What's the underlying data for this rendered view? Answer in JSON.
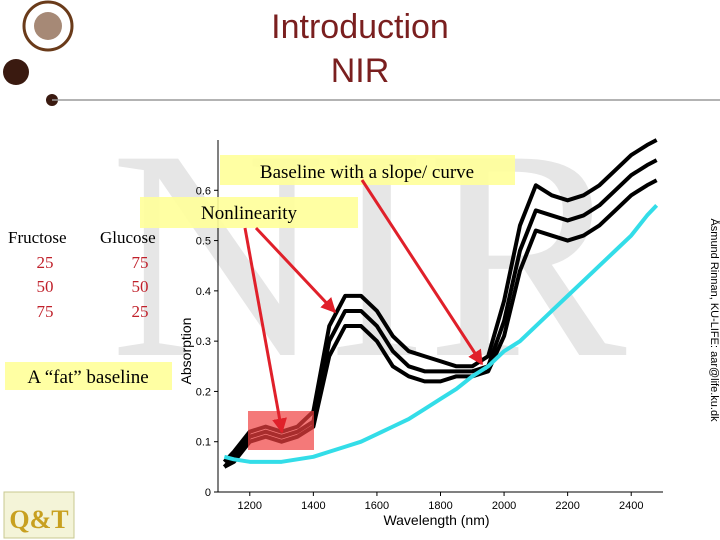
{
  "slide": {
    "title_lines": [
      "Introduction",
      "NIR"
    ],
    "watermark": "NIR",
    "credit": "Åsmund Rinnan, KU-LIFE: aar@life.ku.dk",
    "table": {
      "header": [
        "Fructose",
        "Glucose"
      ],
      "rows": [
        [
          25,
          75
        ],
        [
          50,
          50
        ],
        [
          75,
          25
        ]
      ]
    },
    "callouts": [
      "Baseline with a slope/ curve",
      "Nonlinearity",
      "A “fat” baseline"
    ],
    "logo": "Q&T"
  },
  "chart_data": {
    "type": "line",
    "xlabel": "Wavelength (nm)",
    "ylabel": "Absorption",
    "xlim": [
      1100,
      2500
    ],
    "xticks": [
      1200,
      1400,
      1600,
      1800,
      2000,
      2200,
      2400
    ],
    "ylim": [
      0,
      0.7
    ],
    "yticks": [
      0,
      0.1,
      0.2,
      0.3,
      0.4,
      0.5,
      0.6
    ],
    "x": [
      1120,
      1150,
      1200,
      1250,
      1300,
      1350,
      1400,
      1450,
      1500,
      1550,
      1600,
      1650,
      1700,
      1750,
      1800,
      1850,
      1900,
      1950,
      2000,
      2050,
      2100,
      2150,
      2200,
      2250,
      2300,
      2350,
      2400,
      2450,
      2480
    ],
    "series": [
      {
        "color": "#000000",
        "values": [
          0.06,
          0.08,
          0.12,
          0.13,
          0.12,
          0.13,
          0.16,
          0.33,
          0.39,
          0.39,
          0.36,
          0.31,
          0.28,
          0.27,
          0.26,
          0.25,
          0.25,
          0.27,
          0.38,
          0.53,
          0.61,
          0.59,
          0.58,
          0.59,
          0.61,
          0.64,
          0.67,
          0.69,
          0.7
        ]
      },
      {
        "color": "#000000",
        "values": [
          0.05,
          0.07,
          0.11,
          0.12,
          0.11,
          0.12,
          0.14,
          0.3,
          0.36,
          0.36,
          0.33,
          0.28,
          0.25,
          0.24,
          0.24,
          0.24,
          0.24,
          0.25,
          0.34,
          0.48,
          0.56,
          0.55,
          0.54,
          0.55,
          0.57,
          0.6,
          0.63,
          0.65,
          0.66
        ]
      },
      {
        "color": "#000000",
        "values": [
          0.05,
          0.06,
          0.1,
          0.11,
          0.1,
          0.11,
          0.13,
          0.27,
          0.33,
          0.33,
          0.3,
          0.25,
          0.23,
          0.22,
          0.22,
          0.23,
          0.23,
          0.24,
          0.31,
          0.44,
          0.52,
          0.51,
          0.5,
          0.51,
          0.53,
          0.56,
          0.59,
          0.61,
          0.62
        ]
      },
      {
        "color": "#33dde8",
        "values": [
          0.07,
          0.065,
          0.06,
          0.06,
          0.06,
          0.065,
          0.07,
          0.08,
          0.09,
          0.1,
          0.115,
          0.13,
          0.145,
          0.165,
          0.185,
          0.205,
          0.23,
          0.25,
          0.28,
          0.3,
          0.33,
          0.36,
          0.39,
          0.42,
          0.45,
          0.48,
          0.51,
          0.55,
          0.57
        ]
      }
    ]
  }
}
